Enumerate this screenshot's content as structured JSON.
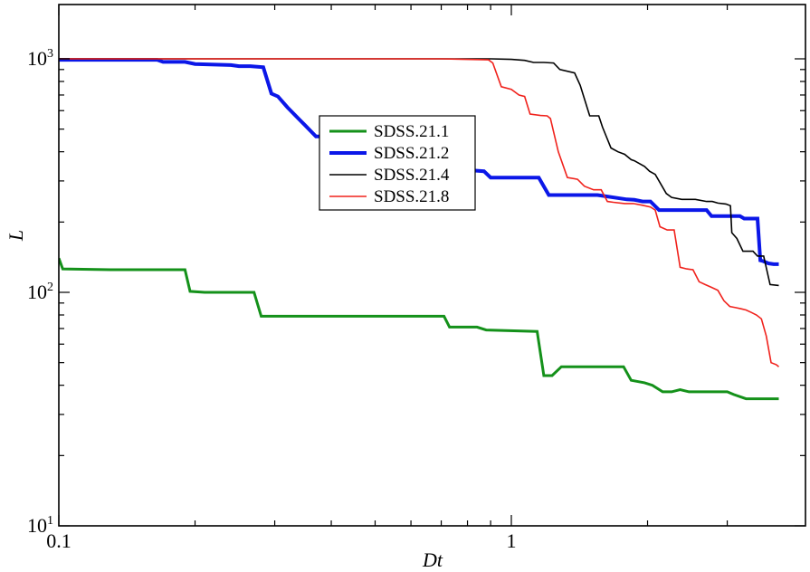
{
  "chart_data": {
    "type": "line",
    "title": "",
    "xlabel": "Dt",
    "ylabel": "L",
    "xscale": "log",
    "yscale": "log",
    "xlim": [
      0.1,
      3.3
    ],
    "ylim": [
      10,
      1050
    ],
    "grid": false,
    "legend_position": "center",
    "x_tick_labels": [
      {
        "value": 0.1,
        "text": "0.1"
      },
      {
        "value": 1,
        "text": "1"
      }
    ],
    "y_tick_labels": [
      {
        "value": 10,
        "base": "10",
        "exp": "1"
      },
      {
        "value": 100,
        "base": "10",
        "exp": "2"
      },
      {
        "value": 1000,
        "base": "10",
        "exp": "3"
      }
    ],
    "series": [
      {
        "name": "SDSS.21.1",
        "color": "#14911a",
        "width": 3,
        "points": [
          [
            0.1,
            140
          ],
          [
            0.102,
            126
          ],
          [
            0.13,
            125
          ],
          [
            0.19,
            125
          ],
          [
            0.195,
            101
          ],
          [
            0.21,
            100
          ],
          [
            0.27,
            100
          ],
          [
            0.28,
            79
          ],
          [
            0.71,
            79
          ],
          [
            0.73,
            71
          ],
          [
            0.84,
            71
          ],
          [
            0.88,
            69
          ],
          [
            1.14,
            68
          ],
          [
            1.18,
            44
          ],
          [
            1.23,
            44
          ],
          [
            1.29,
            48
          ],
          [
            1.77,
            48
          ],
          [
            1.84,
            42
          ],
          [
            1.97,
            41
          ],
          [
            2.05,
            40
          ],
          [
            2.16,
            37.5
          ],
          [
            2.26,
            37.5
          ],
          [
            2.36,
            38.3
          ],
          [
            2.47,
            37.5
          ],
          [
            3.0,
            37.5
          ],
          [
            3.1,
            36.5
          ],
          [
            3.3,
            35
          ],
          [
            3.9,
            35
          ]
        ]
      },
      {
        "name": "SDSS.21.2",
        "color": "#0b17e8",
        "width": 4,
        "points": [
          [
            0.1,
            990
          ],
          [
            0.165,
            990
          ],
          [
            0.17,
            970
          ],
          [
            0.19,
            970
          ],
          [
            0.2,
            950
          ],
          [
            0.24,
            940
          ],
          [
            0.25,
            930
          ],
          [
            0.265,
            930
          ],
          [
            0.283,
            920
          ],
          [
            0.295,
            710
          ],
          [
            0.305,
            690
          ],
          [
            0.32,
            620
          ],
          [
            0.34,
            550
          ],
          [
            0.35,
            520
          ],
          [
            0.37,
            465
          ],
          [
            0.42,
            465
          ],
          [
            0.47,
            360
          ],
          [
            0.87,
            330
          ],
          [
            0.9,
            310
          ],
          [
            1.02,
            310
          ],
          [
            1.15,
            310
          ],
          [
            1.21,
            261
          ],
          [
            1.55,
            261
          ],
          [
            1.8,
            250
          ],
          [
            1.87,
            249
          ],
          [
            1.95,
            245
          ],
          [
            2.03,
            245
          ],
          [
            2.12,
            225
          ],
          [
            2.7,
            225
          ],
          [
            2.77,
            212
          ],
          [
            3.2,
            212
          ],
          [
            3.27,
            207
          ],
          [
            3.5,
            207
          ],
          [
            3.55,
            137
          ],
          [
            3.6,
            136
          ],
          [
            3.7,
            133
          ],
          [
            3.8,
            132
          ],
          [
            3.9,
            132
          ]
        ]
      },
      {
        "name": "SDSS.21.4",
        "color": "#000000",
        "width": 1.6,
        "points": [
          [
            0.1,
            1000
          ],
          [
            0.9,
            1000
          ],
          [
            1.0,
            995
          ],
          [
            1.07,
            985
          ],
          [
            1.12,
            965
          ],
          [
            1.18,
            965
          ],
          [
            1.24,
            960
          ],
          [
            1.28,
            900
          ],
          [
            1.38,
            870
          ],
          [
            1.42,
            770
          ],
          [
            1.49,
            570
          ],
          [
            1.56,
            570
          ],
          [
            1.59,
            510
          ],
          [
            1.66,
            415
          ],
          [
            1.72,
            400
          ],
          [
            1.78,
            390
          ],
          [
            1.84,
            370
          ],
          [
            1.87,
            366
          ],
          [
            1.97,
            346
          ],
          [
            2.02,
            330
          ],
          [
            2.08,
            320
          ],
          [
            2.2,
            265
          ],
          [
            2.26,
            255
          ],
          [
            2.38,
            250
          ],
          [
            2.55,
            250
          ],
          [
            2.7,
            245
          ],
          [
            2.78,
            245
          ],
          [
            2.86,
            241
          ],
          [
            2.98,
            239
          ],
          [
            3.05,
            235
          ],
          [
            3.07,
            180
          ],
          [
            3.15,
            170
          ],
          [
            3.25,
            150
          ],
          [
            3.42,
            150
          ],
          [
            3.5,
            143
          ],
          [
            3.61,
            143
          ],
          [
            3.73,
            108
          ],
          [
            3.9,
            107
          ]
        ]
      },
      {
        "name": "SDSS.21.8",
        "color": "#f0221c",
        "width": 1.6,
        "points": [
          [
            0.1,
            1000
          ],
          [
            0.7,
            1000
          ],
          [
            0.89,
            990
          ],
          [
            0.91,
            960
          ],
          [
            0.95,
            760
          ],
          [
            1.0,
            740
          ],
          [
            1.04,
            700
          ],
          [
            1.07,
            690
          ],
          [
            1.1,
            580
          ],
          [
            1.16,
            572
          ],
          [
            1.2,
            570
          ],
          [
            1.22,
            555
          ],
          [
            1.27,
            400
          ],
          [
            1.33,
            310
          ],
          [
            1.4,
            305
          ],
          [
            1.45,
            285
          ],
          [
            1.52,
            275
          ],
          [
            1.58,
            275
          ],
          [
            1.63,
            245
          ],
          [
            1.68,
            243
          ],
          [
            1.78,
            240
          ],
          [
            1.86,
            240
          ],
          [
            1.95,
            236
          ],
          [
            2.03,
            232
          ],
          [
            2.08,
            225
          ],
          [
            2.13,
            191
          ],
          [
            2.21,
            185
          ],
          [
            2.29,
            185
          ],
          [
            2.36,
            128
          ],
          [
            2.44,
            126
          ],
          [
            2.52,
            125
          ],
          [
            2.6,
            111
          ],
          [
            2.68,
            108
          ],
          [
            2.77,
            105
          ],
          [
            2.86,
            102
          ],
          [
            2.95,
            92
          ],
          [
            3.04,
            87
          ],
          [
            3.13,
            86
          ],
          [
            3.22,
            85
          ],
          [
            3.3,
            84
          ],
          [
            3.39,
            82
          ],
          [
            3.48,
            80
          ],
          [
            3.57,
            77
          ],
          [
            3.66,
            65
          ],
          [
            3.75,
            50
          ],
          [
            3.85,
            49
          ],
          [
            3.9,
            48
          ]
        ]
      }
    ]
  }
}
